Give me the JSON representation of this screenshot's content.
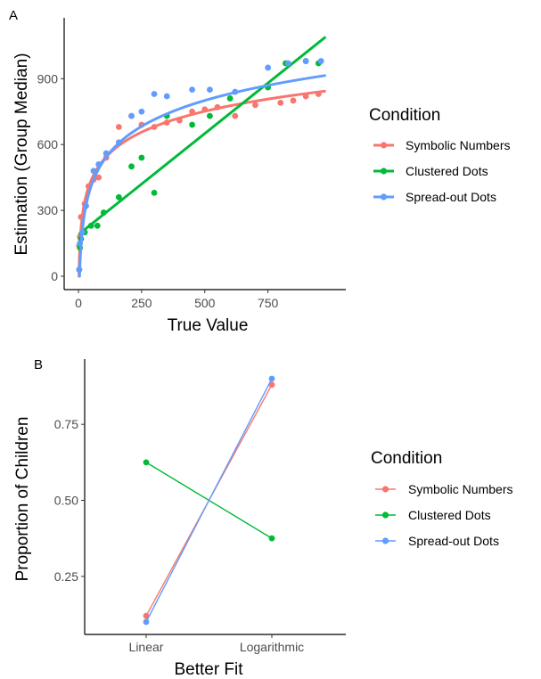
{
  "chart_data": [
    {
      "panel": "A",
      "type": "scatter",
      "xlabel": "True Value",
      "ylabel": "Estimation (Group Median)",
      "xlim": [
        0,
        1000
      ],
      "ylim": [
        0,
        1100
      ],
      "xticks": [
        0,
        250,
        500,
        750
      ],
      "yticks": [
        0,
        300,
        600,
        900
      ],
      "grid": false,
      "legend": {
        "title": "Condition",
        "position": "right"
      },
      "series": [
        {
          "name": "Symbolic Numbers",
          "color": "#F8766D",
          "fit": "logarithmic",
          "fit_params": {
            "a": -100,
            "b": 137
          },
          "points": [
            [
              3,
              140
            ],
            [
              6,
              180
            ],
            [
              10,
              270
            ],
            [
              25,
              330
            ],
            [
              40,
              410
            ],
            [
              60,
              440
            ],
            [
              80,
              450
            ],
            [
              110,
              540
            ],
            [
              160,
              680
            ],
            [
              210,
              730
            ],
            [
              250,
              690
            ],
            [
              300,
              680
            ],
            [
              350,
              700
            ],
            [
              400,
              710
            ],
            [
              450,
              750
            ],
            [
              500,
              760
            ],
            [
              550,
              770
            ],
            [
              620,
              730
            ],
            [
              700,
              780
            ],
            [
              800,
              790
            ],
            [
              850,
              800
            ],
            [
              900,
              820
            ],
            [
              950,
              830
            ]
          ]
        },
        {
          "name": "Clustered Dots",
          "color": "#00BA38",
          "fit": "linear",
          "fit_params": {
            "a": 190,
            "b": 0.92
          },
          "points": [
            [
              3,
              30
            ],
            [
              6,
              130
            ],
            [
              10,
              170
            ],
            [
              25,
              200
            ],
            [
              50,
              230
            ],
            [
              75,
              230
            ],
            [
              100,
              290
            ],
            [
              160,
              360
            ],
            [
              210,
              500
            ],
            [
              250,
              540
            ],
            [
              300,
              380
            ],
            [
              350,
              730
            ],
            [
              450,
              690
            ],
            [
              520,
              730
            ],
            [
              600,
              810
            ],
            [
              750,
              860
            ],
            [
              820,
              970
            ],
            [
              900,
              980
            ],
            [
              950,
              970
            ]
          ]
        },
        {
          "name": "Spread-out Dots",
          "color": "#619CFF",
          "fit": "logarithmic",
          "fit_params": {
            "a": -256,
            "b": 170
          },
          "points": [
            [
              3,
              30
            ],
            [
              6,
              150
            ],
            [
              15,
              200
            ],
            [
              30,
              320
            ],
            [
              60,
              480
            ],
            [
              80,
              510
            ],
            [
              110,
              560
            ],
            [
              160,
              610
            ],
            [
              210,
              730
            ],
            [
              250,
              750
            ],
            [
              300,
              830
            ],
            [
              350,
              820
            ],
            [
              450,
              850
            ],
            [
              520,
              850
            ],
            [
              620,
              840
            ],
            [
              750,
              950
            ],
            [
              830,
              970
            ],
            [
              900,
              980
            ],
            [
              960,
              980
            ]
          ]
        }
      ]
    },
    {
      "panel": "B",
      "type": "line",
      "categories": [
        "Linear",
        "Logarithmic"
      ],
      "xlabel": "Better Fit",
      "ylabel": "Proportion of Children",
      "ylim": [
        0.082,
        0.917
      ],
      "yticks": [
        0.25,
        0.5,
        0.75
      ],
      "grid": false,
      "legend": {
        "title": "Condition",
        "position": "right"
      },
      "series": [
        {
          "name": "Symbolic Numbers",
          "color": "#F8766D",
          "values": [
            0.12,
            0.88
          ]
        },
        {
          "name": "Clustered Dots",
          "color": "#00BA38",
          "values": [
            0.625,
            0.375
          ]
        },
        {
          "name": "Spread-out Dots",
          "color": "#619CFF",
          "values": [
            0.1,
            0.9
          ]
        }
      ]
    }
  ]
}
